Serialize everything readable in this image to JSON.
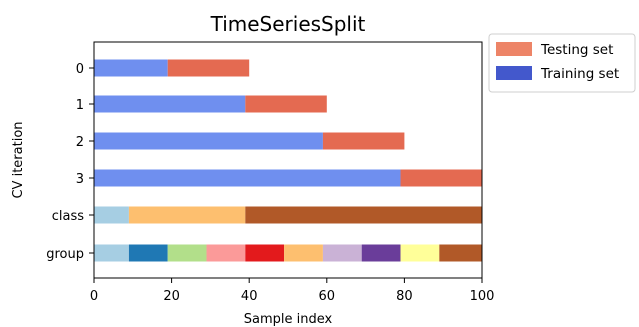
{
  "chart_data": {
    "type": "bar",
    "orientation": "horizontal",
    "stacked": true,
    "title": "TimeSeriesSplit",
    "xlabel": "Sample index",
    "ylabel": "CV iteration",
    "xlim": [
      0,
      100
    ],
    "xticks": [
      0,
      20,
      40,
      60,
      80,
      100
    ],
    "grid": false,
    "legend_placement": "outside-top-right",
    "categories": [
      "0",
      "1",
      "2",
      "3",
      "class",
      "group"
    ],
    "legend": [
      {
        "name": "Testing set",
        "color": "#ED8467"
      },
      {
        "name": "Training set",
        "color": "#4358CC"
      }
    ],
    "cv_rows": [
      {
        "label": "0",
        "segments": [
          {
            "set": "Training set",
            "start": 0,
            "end": 19,
            "color": "#6F8FEF"
          },
          {
            "set": "Testing set",
            "start": 19,
            "end": 40,
            "color": "#E46A51"
          }
        ]
      },
      {
        "label": "1",
        "segments": [
          {
            "set": "Training set",
            "start": 0,
            "end": 39,
            "color": "#6F8FEF"
          },
          {
            "set": "Testing set",
            "start": 39,
            "end": 60,
            "color": "#E46A51"
          }
        ]
      },
      {
        "label": "2",
        "segments": [
          {
            "set": "Training set",
            "start": 0,
            "end": 59,
            "color": "#6F8FEF"
          },
          {
            "set": "Testing set",
            "start": 59,
            "end": 80,
            "color": "#E46A51"
          }
        ]
      },
      {
        "label": "3",
        "segments": [
          {
            "set": "Training set",
            "start": 0,
            "end": 79,
            "color": "#6F8FEF"
          },
          {
            "set": "Testing set",
            "start": 79,
            "end": 100,
            "color": "#E46A51"
          }
        ]
      }
    ],
    "class_row": {
      "label": "class",
      "segments": [
        {
          "start": 0,
          "end": 9,
          "color": "#A6CEE3"
        },
        {
          "start": 9,
          "end": 39,
          "color": "#FDBF6F"
        },
        {
          "start": 39,
          "end": 100,
          "color": "#B15928"
        }
      ]
    },
    "group_row": {
      "label": "group",
      "segments": [
        {
          "start": 0,
          "end": 9,
          "color": "#A6CEE3"
        },
        {
          "start": 9,
          "end": 19,
          "color": "#1F78B4"
        },
        {
          "start": 19,
          "end": 29,
          "color": "#B2DF8A"
        },
        {
          "start": 29,
          "end": 39,
          "color": "#FB9A99"
        },
        {
          "start": 39,
          "end": 49,
          "color": "#E31A1C"
        },
        {
          "start": 49,
          "end": 59,
          "color": "#FDBF6F"
        },
        {
          "start": 59,
          "end": 69,
          "color": "#CAB2D6"
        },
        {
          "start": 69,
          "end": 79,
          "color": "#6A3D9A"
        },
        {
          "start": 79,
          "end": 89,
          "color": "#FFFF99"
        },
        {
          "start": 89,
          "end": 100,
          "color": "#B15928"
        }
      ]
    }
  }
}
